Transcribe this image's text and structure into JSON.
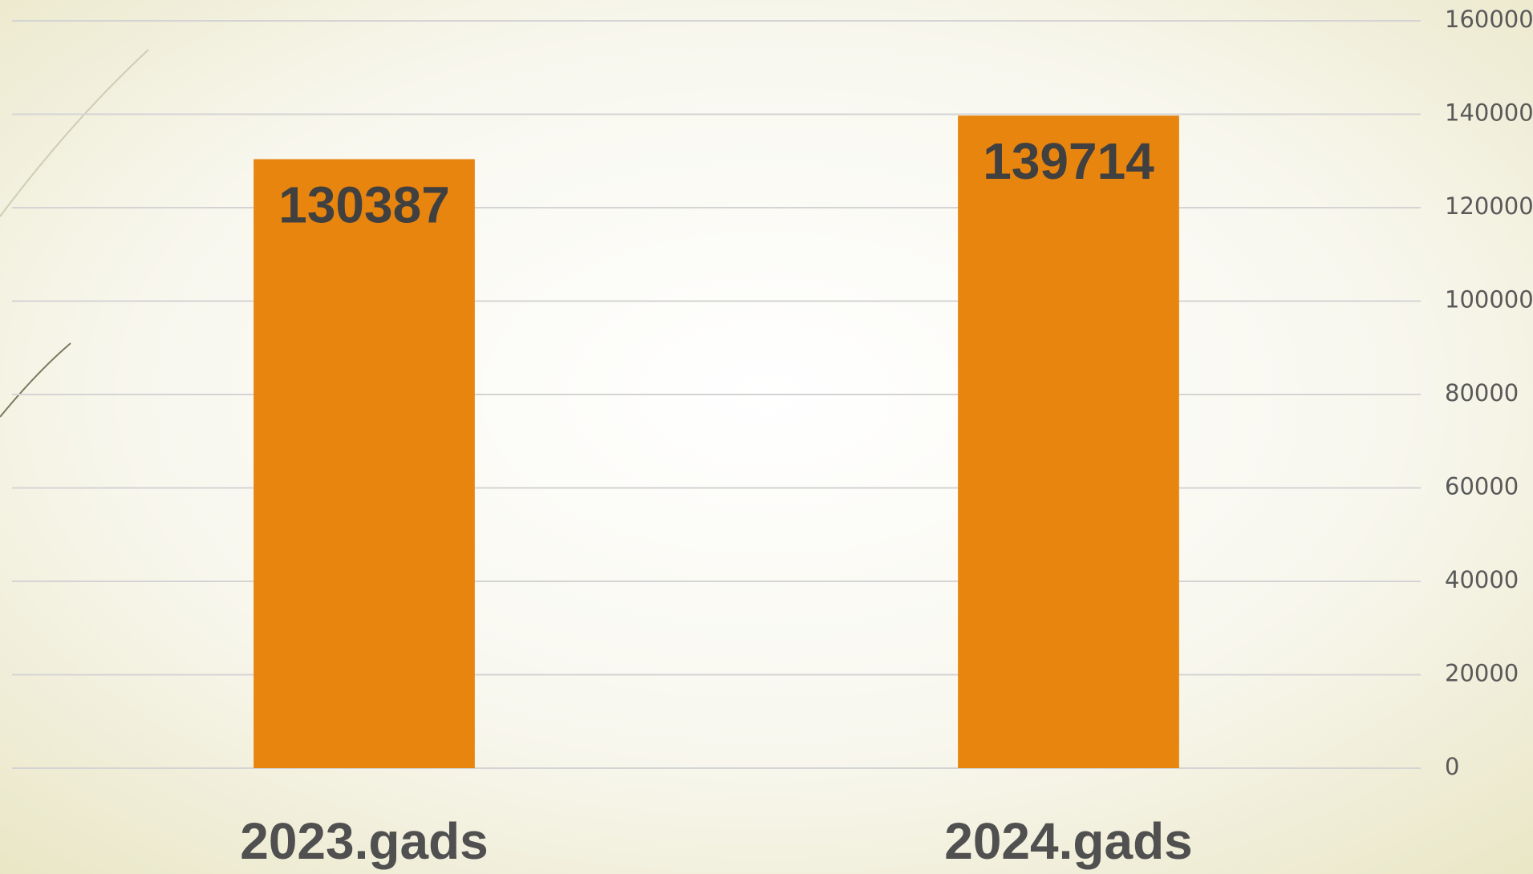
{
  "chart_data": {
    "type": "bar",
    "categories": [
      "2023.gads",
      "2024.gads"
    ],
    "values": [
      130387,
      139714
    ],
    "color": "#e8850f",
    "ylim": [
      0,
      160000
    ],
    "yticks": [
      0,
      20000,
      40000,
      60000,
      80000,
      100000,
      120000,
      140000,
      160000
    ],
    "grid": true
  }
}
